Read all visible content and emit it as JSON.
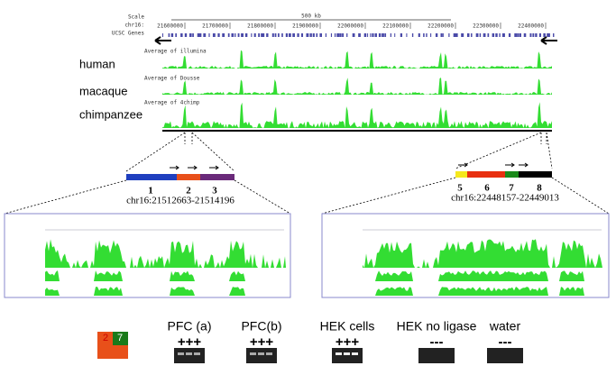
{
  "top_browser": {
    "scale_label": "Scale",
    "scale_value": "500 kb",
    "chrom": "chr16:",
    "ticks": [
      "21600000",
      "21700000",
      "21800000",
      "21900000",
      "22000000",
      "22100000",
      "22200000",
      "22300000",
      "22400000"
    ],
    "genes_label": "UCSC Genes",
    "tracks": [
      "Average of illumina",
      "Average of Dousse",
      "Average of 4chimp"
    ]
  },
  "species": [
    "human",
    "macaque",
    "chimpanzee"
  ],
  "left_region": {
    "segments": [
      "1",
      "2",
      "3"
    ],
    "coords": "chr16:21512663-21514196"
  },
  "right_region": {
    "segments": [
      "5",
      "6",
      "7",
      "8"
    ],
    "coords": "chr16:22448157-22449013"
  },
  "gel": {
    "key": [
      "2",
      "7"
    ],
    "lanes": [
      {
        "label": "PFC (a)",
        "signs": "+++"
      },
      {
        "label": "PFC(b)",
        "signs": "+++"
      },
      {
        "label": "HEK cells",
        "signs": "+++"
      },
      {
        "label": "HEK no ligase",
        "signs": "---"
      },
      {
        "label": "water",
        "signs": "---"
      }
    ]
  }
}
